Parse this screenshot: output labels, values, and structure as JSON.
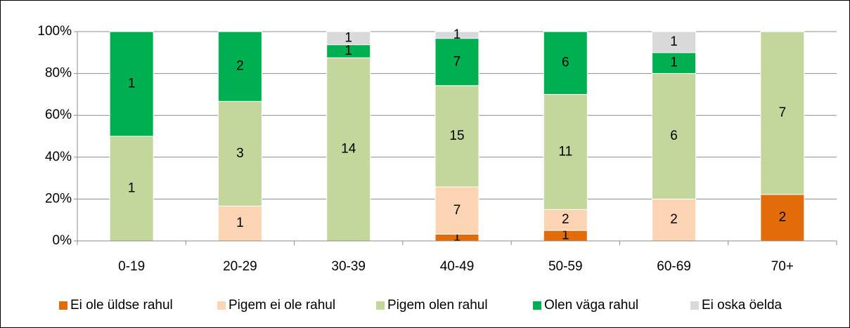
{
  "chart_data": {
    "type": "bar",
    "stacked": true,
    "normalize": "percent",
    "categories": [
      "0-19",
      "20-29",
      "30-39",
      "40-49",
      "50-59",
      "60-69",
      "70+"
    ],
    "series": [
      {
        "name": "Ei ole üldse rahul",
        "color": "#e36c0a",
        "values": [
          0,
          0,
          0,
          1,
          1,
          0,
          2
        ]
      },
      {
        "name": "Pigem ei ole rahul",
        "color": "#fbd4b4",
        "values": [
          0,
          1,
          0,
          7,
          2,
          2,
          0
        ]
      },
      {
        "name": "Pigem olen rahul",
        "color": "#c3d69b",
        "values": [
          1,
          3,
          14,
          15,
          11,
          6,
          7
        ]
      },
      {
        "name": "Olen väga rahul",
        "color": "#00b050",
        "values": [
          1,
          2,
          1,
          7,
          6,
          1,
          0
        ]
      },
      {
        "name": "Ei oska öelda",
        "color": "#d9d9d9",
        "values": [
          0,
          0,
          1,
          1,
          0,
          1,
          0
        ]
      }
    ],
    "ylim": [
      0,
      100
    ],
    "yticks": [
      {
        "value": 0,
        "label": "0%"
      },
      {
        "value": 20,
        "label": "20%"
      },
      {
        "value": 40,
        "label": "40%"
      },
      {
        "value": 60,
        "label": "60%"
      },
      {
        "value": 80,
        "label": "80%"
      },
      {
        "value": 100,
        "label": "100%"
      }
    ],
    "grid": true,
    "legend": "bottom"
  }
}
